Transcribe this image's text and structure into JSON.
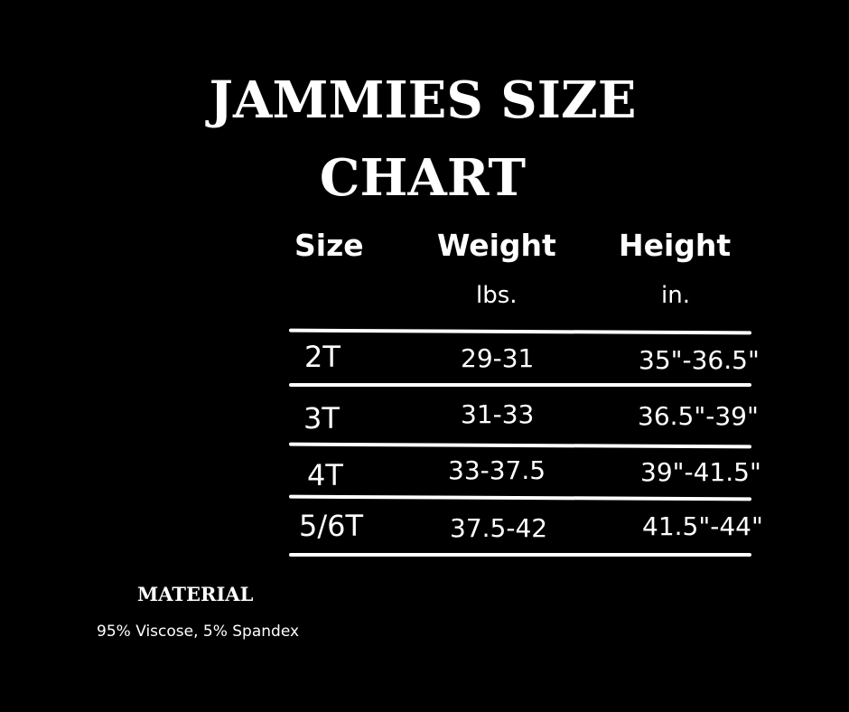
{
  "title_line1": "JAMMIES SIZE",
  "title_line2": "CHART",
  "headers": {
    "size": "Size",
    "weight": "Weight",
    "height": "Height",
    "weight_unit": "lbs.",
    "height_unit": "in."
  },
  "rows": [
    {
      "size": "2T",
      "weight": "29-31",
      "height": "35\"-36.5\""
    },
    {
      "size": "3T",
      "weight": "31-33",
      "height": "36.5\"-39\""
    },
    {
      "size": "4T",
      "weight": "33-37.5",
      "height": "39\"-41.5\""
    },
    {
      "size": "5/6T",
      "weight": "37.5-42",
      "height": "41.5\"-44\""
    }
  ],
  "material": {
    "label": "MATERIAL",
    "value": "95% Viscose, 5% Spandex"
  }
}
